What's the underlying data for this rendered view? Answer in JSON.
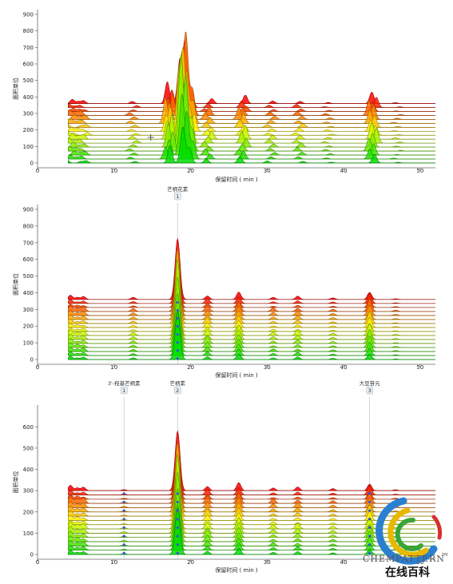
{
  "chart_data": [
    {
      "type": "line",
      "title": "",
      "xlabel": "保留时间 ( min )",
      "ylabel": "面积单位",
      "xlim": [
        0,
        52
      ],
      "ylim": [
        0,
        900
      ],
      "xticks": [
        "0",
        "10",
        "20",
        "30",
        "40",
        "50"
      ],
      "yticks": [
        "0",
        "100",
        "200",
        "300",
        "400",
        "500",
        "600",
        "700",
        "800",
        "900"
      ],
      "grid": false,
      "stack_count": 16,
      "stack_offset": 24,
      "series_color_range": [
        "#00dd00",
        "#ffff00",
        "#ff0000"
      ],
      "peaks": [
        {
          "x": 4.3,
          "height": 40
        },
        {
          "x": 5.2,
          "height": 28
        },
        {
          "x": 6.0,
          "height": 35
        },
        {
          "x": 12.5,
          "height": 20
        },
        {
          "x": 17.2,
          "height": 210
        },
        {
          "x": 19.0,
          "height": 660
        },
        {
          "x": 20.0,
          "height": 180
        },
        {
          "x": 22.3,
          "height": 60
        },
        {
          "x": 26.8,
          "height": 90
        },
        {
          "x": 30.5,
          "height": 25
        },
        {
          "x": 34.2,
          "height": 35
        },
        {
          "x": 38.0,
          "height": 15
        },
        {
          "x": 43.8,
          "height": 110
        },
        {
          "x": 47.0,
          "height": 10
        }
      ],
      "crosshair": {
        "x": 14.8,
        "y": 155
      },
      "flags": []
    },
    {
      "type": "line",
      "title": "",
      "xlabel": "保留时间 ( min )",
      "ylabel": "面积单位",
      "xlim": [
        0,
        52
      ],
      "ylim": [
        0,
        900
      ],
      "xticks": [
        "0",
        "10",
        "20",
        "30",
        "40",
        "50"
      ],
      "yticks": [
        "0",
        "100",
        "200",
        "300",
        "400",
        "500",
        "600",
        "700",
        "800",
        "900"
      ],
      "grid": false,
      "stack_count": 16,
      "stack_offset": 24,
      "series_color_range": [
        "#00dd00",
        "#ffff00",
        "#ff0000"
      ],
      "peaks": [
        {
          "x": 4.3,
          "height": 40
        },
        {
          "x": 5.2,
          "height": 28
        },
        {
          "x": 6.0,
          "height": 35
        },
        {
          "x": 12.5,
          "height": 20
        },
        {
          "x": 18.3,
          "height": 520
        },
        {
          "x": 22.2,
          "height": 55
        },
        {
          "x": 26.3,
          "height": 70
        },
        {
          "x": 30.8,
          "height": 25
        },
        {
          "x": 34.0,
          "height": 35
        },
        {
          "x": 38.6,
          "height": 15
        },
        {
          "x": 43.4,
          "height": 110
        },
        {
          "x": 46.8,
          "height": 10
        }
      ],
      "markers": [
        {
          "x": 18.3,
          "color": "#3355dd"
        }
      ],
      "flags": [
        {
          "x": 18.3,
          "label": "芒柄花素",
          "index": "1"
        }
      ]
    },
    {
      "type": "line",
      "title": "",
      "xlabel": "保留时间 ( min )",
      "ylabel": "面积单位",
      "xlim": [
        0,
        52
      ],
      "ylim": [
        0,
        680
      ],
      "xticks": [
        "0",
        "10",
        "20",
        "30",
        "40",
        "50"
      ],
      "yticks": [
        "0",
        "100",
        "200",
        "300",
        "400",
        "500",
        "600"
      ],
      "grid": false,
      "stack_count": 16,
      "stack_offset": 20,
      "series_color_range": [
        "#00dd00",
        "#ffff00",
        "#ff0000"
      ],
      "peaks": [
        {
          "x": 4.3,
          "height": 40
        },
        {
          "x": 5.2,
          "height": 30
        },
        {
          "x": 6.0,
          "height": 32
        },
        {
          "x": 11.3,
          "height": 8
        },
        {
          "x": 18.3,
          "height": 400
        },
        {
          "x": 22.2,
          "height": 50
        },
        {
          "x": 26.3,
          "height": 60
        },
        {
          "x": 30.8,
          "height": 25
        },
        {
          "x": 34.0,
          "height": 30
        },
        {
          "x": 38.6,
          "height": 15
        },
        {
          "x": 43.4,
          "height": 80
        },
        {
          "x": 46.8,
          "height": 10
        }
      ],
      "markers": [
        {
          "x": 11.3,
          "color": "#3355dd"
        },
        {
          "x": 18.3,
          "color": "#3355dd"
        },
        {
          "x": 43.4,
          "color": "#3355dd"
        }
      ],
      "flags": [
        {
          "x": 11.3,
          "label": "3'-羟基芒柄素",
          "index": "1"
        },
        {
          "x": 18.3,
          "label": "芒柄素",
          "index": "2"
        },
        {
          "x": 43.4,
          "label": "大豆苷元",
          "index": "3"
        }
      ]
    }
  ],
  "watermark": {
    "brand": "CHEMPATTERN",
    "trademark": "TM",
    "tagline": "在线百科"
  }
}
